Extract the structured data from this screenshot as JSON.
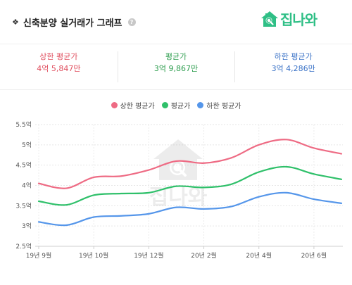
{
  "header": {
    "title": "신축분양 실거래가 그래프",
    "brand": "집나와",
    "icons": {
      "bullet": "diamond-icon",
      "help": "help-icon",
      "logo": "house-search-icon"
    }
  },
  "stats": [
    {
      "label": "상한 평균가",
      "value": "4억 5,847만",
      "color": "#e04f5f"
    },
    {
      "label": "평균가",
      "value": "3억 9,867만",
      "color": "#2e9e4f"
    },
    {
      "label": "하한 평균가",
      "value": "3억 4,286만",
      "color": "#3b73c7"
    }
  ],
  "watermark": "집나와",
  "chart_data": {
    "type": "line",
    "x_ticks": [
      "19년 9월",
      "19년 10월",
      "19년 12월",
      "20년 2월",
      "20년 4월",
      "20년 6월"
    ],
    "y_ticks": [
      "2.5억",
      "3억",
      "3.5억",
      "4억",
      "4.5억",
      "5억",
      "5.5억"
    ],
    "ylim": [
      2.5,
      5.5
    ],
    "grid": true,
    "legend_position": "top-center",
    "series": [
      {
        "name": "상한 평균가",
        "color": "#ee6b84",
        "values": [
          4.05,
          3.93,
          4.2,
          4.23,
          4.38,
          4.6,
          4.55,
          4.68,
          5.0,
          5.13,
          4.92,
          4.78
        ]
      },
      {
        "name": "평균가",
        "color": "#2fc06a",
        "values": [
          3.61,
          3.52,
          3.76,
          3.8,
          3.82,
          3.98,
          3.95,
          4.03,
          4.33,
          4.46,
          4.28,
          4.15
        ]
      },
      {
        "name": "하한 평균가",
        "color": "#5596ea",
        "values": [
          3.1,
          3.02,
          3.22,
          3.25,
          3.3,
          3.46,
          3.42,
          3.48,
          3.72,
          3.82,
          3.66,
          3.56
        ]
      }
    ]
  }
}
